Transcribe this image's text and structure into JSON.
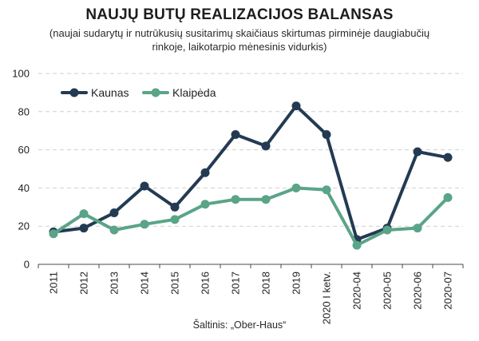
{
  "title": "NAUJŲ BUTŲ REALIZACIJOS BALANSAS",
  "subtitle": "(naujai sudarytų ir nutrūkusių susitarimų skaičiaus skirtumas pirminėje daugiabučių rinkoje, laikotarpio mėnesinis vidurkis)",
  "source": "Šaltinis: „Ober-Haus“",
  "chart_data": {
    "type": "line",
    "categories": [
      "2011",
      "2012",
      "2013",
      "2014",
      "2015",
      "2016",
      "2017",
      "2018",
      "2019",
      "2020 I ketv.",
      "2020-04",
      "2020-05",
      "2020-06",
      "2020-07"
    ],
    "series": [
      {
        "name": "Kaunas",
        "color": "#233b52",
        "values": [
          17,
          19,
          27,
          41,
          30,
          48,
          68,
          62,
          83,
          68,
          13,
          19,
          59,
          56
        ]
      },
      {
        "name": "Klaipėda",
        "color": "#5aa487",
        "values": [
          16,
          26.5,
          18,
          21,
          23.5,
          31.5,
          34,
          34,
          40,
          39,
          10,
          18,
          19,
          35
        ]
      }
    ],
    "ylim": [
      0,
      100
    ],
    "yticks": [
      0,
      20,
      40,
      60,
      80,
      100
    ],
    "grid": true,
    "legend": "top-left"
  }
}
